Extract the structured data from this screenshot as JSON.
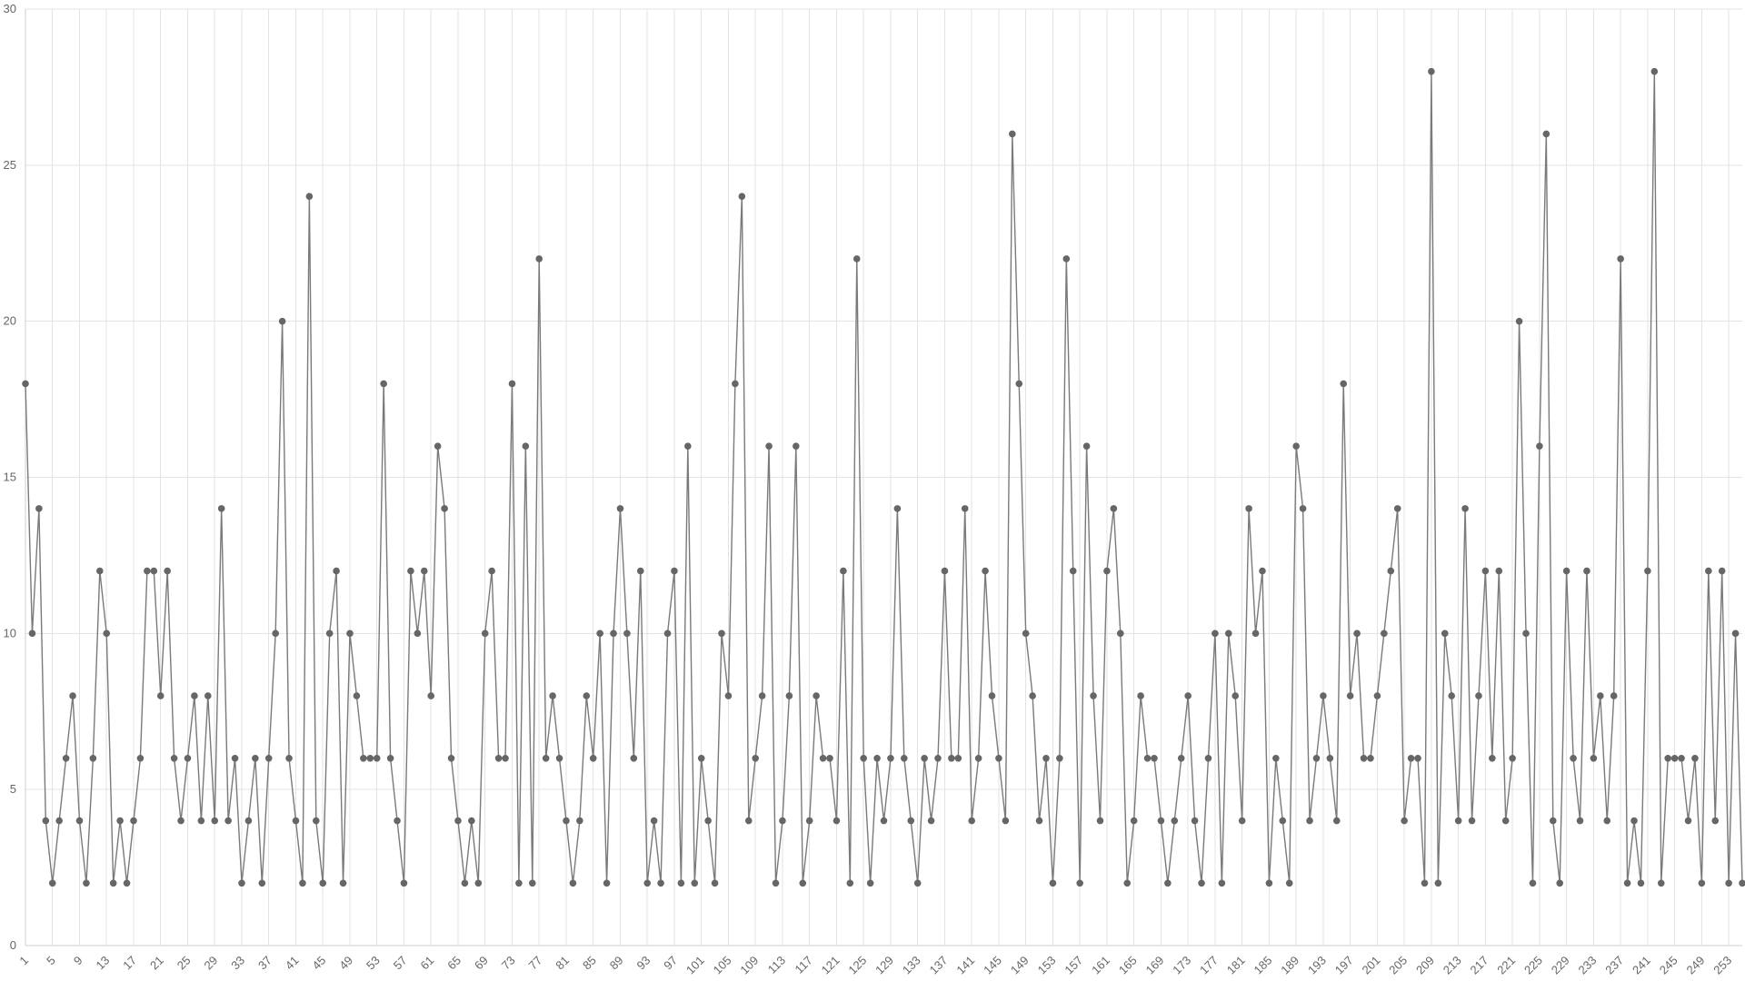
{
  "chart_data": {
    "type": "line",
    "title": "",
    "xlabel": "",
    "ylabel": "",
    "ylim": [
      0,
      30
    ],
    "y_ticks": [
      0,
      5,
      10,
      15,
      20,
      25,
      30
    ],
    "x_range": [
      1,
      255
    ],
    "x_tick_step": 4,
    "x_tick_labels": [
      "1",
      "5",
      "9",
      "13",
      "17",
      "21",
      "25",
      "29",
      "33",
      "37",
      "41",
      "45",
      "49",
      "53",
      "57",
      "61",
      "65",
      "69",
      "73",
      "77",
      "81",
      "85",
      "89",
      "93",
      "97",
      "101",
      "105",
      "109",
      "113",
      "117",
      "121",
      "125",
      "129",
      "133",
      "137",
      "141",
      "145",
      "149",
      "153",
      "157",
      "161",
      "165",
      "169",
      "173",
      "177",
      "181",
      "185",
      "189",
      "193",
      "197",
      "201",
      "205",
      "209",
      "213",
      "217",
      "221",
      "225",
      "229",
      "233",
      "237",
      "241",
      "245",
      "249",
      "253"
    ],
    "grid": true,
    "legend": "none",
    "colors": {
      "line": "#7a7a7a",
      "point": "#666666",
      "grid": "#e3e3e3"
    },
    "series": [
      {
        "values": [
          18,
          10,
          14,
          4,
          2,
          4,
          6,
          8,
          4,
          2,
          6,
          12,
          10,
          2,
          4,
          2,
          4,
          6,
          12,
          12,
          8,
          12,
          6,
          4,
          6,
          8,
          4,
          8,
          4,
          14,
          4,
          6,
          2,
          4,
          6,
          2,
          6,
          10,
          20,
          6,
          4,
          2,
          24,
          4,
          2,
          10,
          12,
          2,
          10,
          8,
          6,
          6,
          6,
          18,
          6,
          4,
          2,
          12,
          10,
          12,
          8,
          16,
          14,
          6,
          4,
          2,
          4,
          2,
          10,
          12,
          6,
          6,
          18,
          2,
          16,
          2,
          22,
          6,
          8,
          6,
          4,
          2,
          4,
          8,
          6,
          10,
          2,
          10,
          14,
          10,
          6,
          12,
          2,
          4,
          2,
          10,
          12,
          2,
          16,
          2,
          6,
          4,
          2,
          10,
          8,
          18,
          24,
          4,
          6,
          8,
          16,
          2,
          4,
          8,
          16,
          2,
          4,
          8,
          6,
          6,
          4,
          12,
          2,
          22,
          6,
          2,
          6,
          4,
          6,
          14,
          6,
          4,
          2,
          6,
          4,
          6,
          12,
          6,
          6,
          14,
          4,
          6,
          12,
          8,
          6,
          4,
          26,
          18,
          10,
          8,
          4,
          6,
          2,
          6,
          22,
          12,
          2,
          16,
          8,
          4,
          12,
          14,
          10,
          2,
          4,
          8,
          6,
          6,
          4,
          2,
          4,
          6,
          8,
          4,
          2,
          6,
          10,
          2,
          10,
          8,
          4,
          14,
          10,
          12,
          2,
          6,
          4,
          2,
          16,
          14,
          4,
          6,
          8,
          6,
          4,
          18,
          8,
          10,
          6,
          6,
          8,
          10,
          12,
          14,
          4,
          6,
          6,
          2,
          28,
          2,
          10,
          8,
          4,
          14,
          4,
          8,
          12,
          6,
          12,
          4,
          6,
          20,
          10,
          2,
          16,
          26,
          4,
          2,
          12,
          6,
          4,
          12,
          6,
          8,
          4,
          8,
          22,
          2,
          4,
          2,
          12,
          28,
          2,
          6,
          6,
          6,
          4,
          6,
          2,
          12,
          4,
          12,
          2,
          10,
          2
        ]
      }
    ]
  }
}
